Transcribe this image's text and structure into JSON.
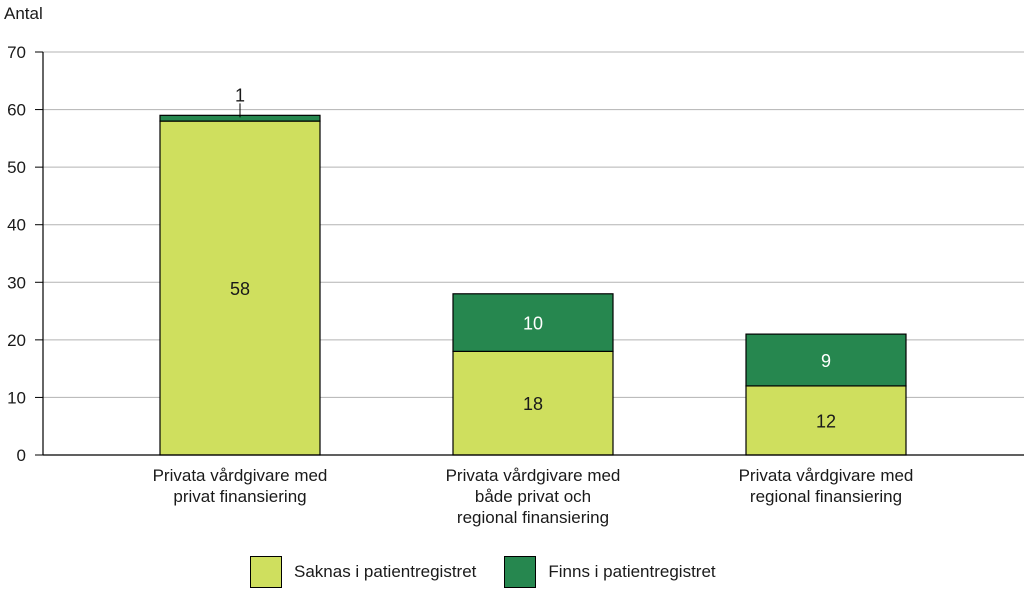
{
  "chart_data": {
    "type": "bar",
    "stacked": true,
    "ylabel": "Antal",
    "ylim": [
      0,
      70
    ],
    "yticks": [
      0,
      10,
      20,
      30,
      40,
      50,
      60,
      70
    ],
    "grid": true,
    "legend_position": "bottom",
    "categories": [
      [
        "Privata vårdgivare med",
        "privat finansiering"
      ],
      [
        "Privata vårdgivare med",
        "både privat och",
        "regional finansiering"
      ],
      [
        "Privata vårdgivare med",
        "regional finansiering"
      ]
    ],
    "series": [
      {
        "name": "Saknas i patientregistret",
        "color": "#cfdf5e",
        "values": [
          58,
          18,
          12
        ]
      },
      {
        "name": "Finns i patientregistret",
        "color": "#26874f",
        "values": [
          1,
          10,
          9
        ]
      }
    ]
  }
}
